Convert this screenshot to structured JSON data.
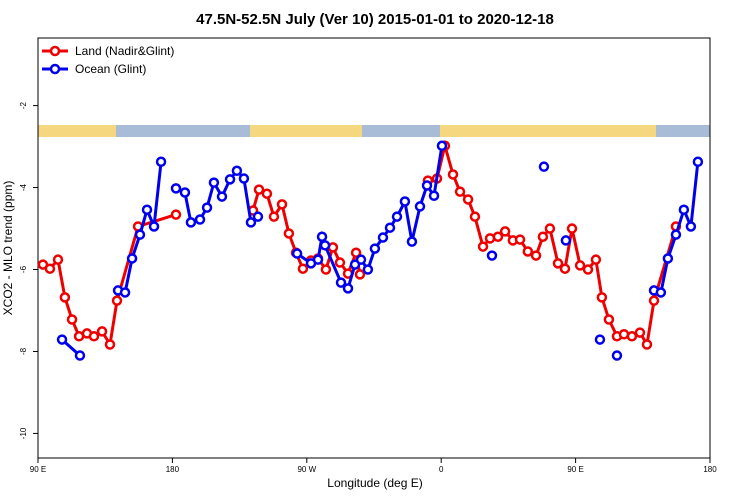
{
  "chart_data": {
    "type": "line",
    "title": "47.5N-52.5N July (Ver 10)   2015-01-01 to 2020-12-18",
    "x_label": "Longitude (deg E)",
    "y_label": "XCO2 - MLO trend (ppm)",
    "xlim": [
      90,
      540
    ],
    "ylim": [
      -10.6,
      -0.35
    ],
    "xticks": [
      {
        "value": 90,
        "label": "90 E"
      },
      180,
      {
        "value": 270,
        "label": "90 W"
      },
      {
        "value": 360,
        "label": "0"
      },
      {
        "value": 450,
        "label": "90 E"
      },
      180
    ],
    "yticks": [
      -2,
      -4,
      -6,
      -8,
      -10
    ],
    "legend": "top-left",
    "series": [
      {
        "name": "Land (Nadir&Glint)",
        "color": "#ee0000",
        "x": [
          93.3,
          98,
          103.4,
          108,
          112.8,
          117.5,
          122.8,
          127.5,
          132.9,
          138.2,
          142.9,
          157,
          182.4,
          null,
          234,
          238,
          243.3,
          248,
          253.4,
          258,
          262.8,
          267.4,
          272.8,
          277.5,
          282.8,
          287.5,
          292.2,
          297.6,
          303,
          305.6,
          null,
          351.1,
          357.2,
          362.5,
          367.9,
          372.6,
          378,
          382.6,
          388,
          392.7,
          398,
          402.8,
          408,
          412.8,
          418,
          423.5,
          428.1,
          432.8,
          438.2,
          442.9,
          447.6,
          453,
          458.3,
          463.6,
          467.6,
          472.3,
          477.7,
          482.4,
          487.7,
          493.1,
          497.8,
          502.5,
          517.2
        ],
        "values": [
          -5.88,
          -5.98,
          -5.76,
          -6.68,
          -7.22,
          -7.63,
          -7.56,
          -7.63,
          -7.51,
          -7.83,
          -6.76,
          -4.95,
          -4.66,
          null,
          -4.56,
          -4.05,
          -4.15,
          -4.71,
          -4.41,
          -5.12,
          -5.59,
          -5.98,
          -5.78,
          -5.73,
          -6.0,
          -5.46,
          -5.83,
          -6.1,
          -5.59,
          -6.12,
          null,
          -3.83,
          -3.78,
          -2.98,
          -3.68,
          -4.1,
          -4.29,
          -4.71,
          -5.44,
          -5.24,
          -5.2,
          -5.07,
          -5.29,
          -5.27,
          -5.56,
          -5.66,
          -5.2,
          -5.0,
          -5.85,
          -5.98,
          -5.0,
          -5.9,
          -6.0,
          -5.76,
          -6.68,
          -7.22,
          -7.63,
          -7.58,
          -7.63,
          -7.54,
          -7.83,
          -6.76,
          -4.95
        ]
      },
      {
        "name": "Ocean (Glint)",
        "color": "#0000ee",
        "x": [
          106.1,
          118.1,
          null,
          143.6,
          148.3,
          153,
          158.3,
          163,
          167.7,
          172.4,
          null,
          182.4,
          188.4,
          192.4,
          198.5,
          203.2,
          207.8,
          213.2,
          218.6,
          223.2,
          227.9,
          232.6,
          237.3,
          null,
          263.5,
          272.8,
          277.5,
          280.2,
          282.2,
          292.9,
          297.6,
          302.3,
          306.3,
          310.9,
          315.6,
          321,
          325.7,
          330.4,
          335.7,
          340.4,
          345.8,
          350.5,
          355.2,
          360.5,
          null,
          394,
          null,
          428.8,
          null,
          443.5,
          null,
          466.3,
          null,
          477.7,
          null,
          502.5,
          507.1,
          511.8,
          517.2,
          522.5,
          527.2,
          531.9
        ],
        "values": [
          -7.71,
          -8.1,
          null,
          -6.51,
          -6.56,
          -5.73,
          -5.15,
          -4.54,
          -4.95,
          -3.37,
          null,
          -4.02,
          -4.12,
          -4.85,
          -4.78,
          -4.49,
          -3.88,
          -4.22,
          -3.8,
          -3.59,
          -3.78,
          -4.85,
          -4.71,
          null,
          -5.61,
          -5.85,
          -5.76,
          -5.2,
          -5.41,
          -6.32,
          -6.46,
          -5.88,
          -5.76,
          -6.0,
          -5.49,
          -5.22,
          -4.98,
          -4.71,
          -4.34,
          -5.32,
          -4.46,
          -3.95,
          -4.2,
          -2.98,
          null,
          -5.66,
          null,
          -3.49,
          null,
          -5.29,
          null,
          -7.71,
          null,
          -8.1,
          null,
          -6.51,
          -6.56,
          -5.73,
          -5.15,
          -4.54,
          -4.95,
          -3.37
        ]
      }
    ]
  }
}
